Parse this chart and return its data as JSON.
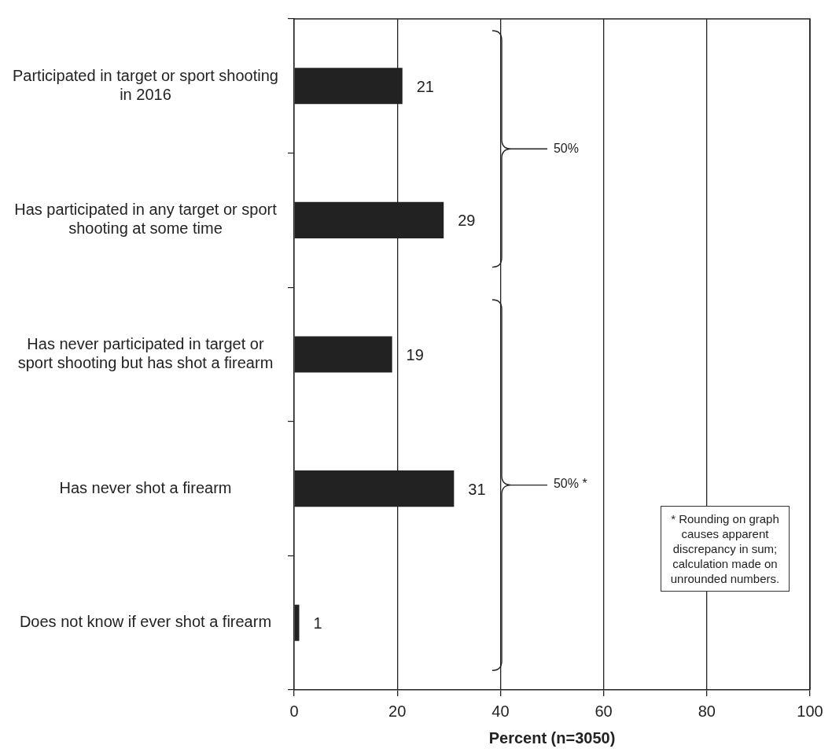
{
  "chart_data": {
    "type": "bar",
    "orientation": "horizontal",
    "categories": [
      "Participated in target or sport shooting in 2016",
      "Has participated in any target or sport shooting at some time",
      "Has never participated in target or sport shooting but has shot a firearm",
      "Has never shot a firearm",
      "Does not know if ever shot a firearm"
    ],
    "values": [
      21,
      29,
      19,
      31,
      1
    ],
    "color": "#222222",
    "xlim": [
      0,
      100
    ],
    "xticks": [
      0,
      20,
      40,
      60,
      80,
      100
    ],
    "grid": "x",
    "data_labels": true,
    "legend": false,
    "xlabel": "Percent (n=3050)",
    "annotations": [
      "50%",
      "50% *",
      "* Rounding on graph causes apparent discrepancy in sum; calculation made on unrounded numbers."
    ]
  }
}
